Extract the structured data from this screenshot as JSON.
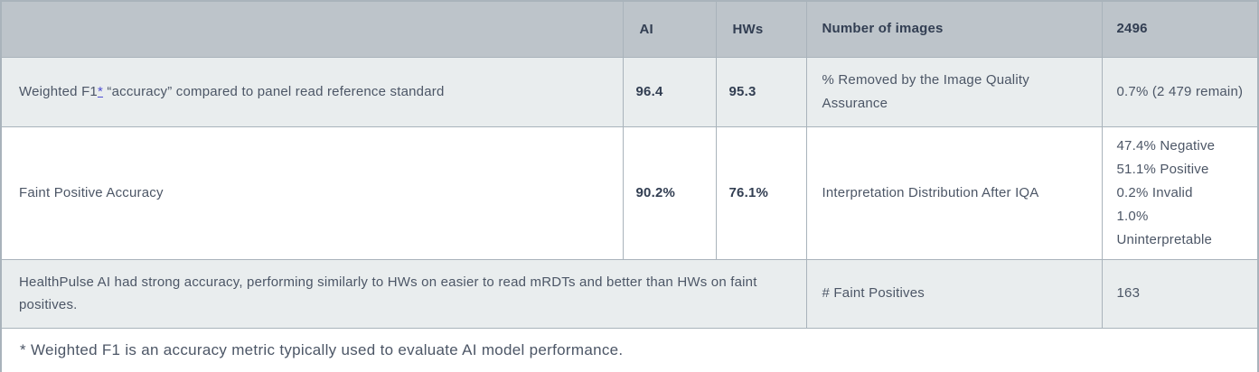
{
  "table": {
    "header": {
      "metric": "",
      "ai": "AI",
      "hws": "HWs",
      "stat_label": "Number of images",
      "stat_value": "2496"
    },
    "row_weighted_f1": {
      "metric_prefix": "Weighted F1",
      "footnote_mark": "*",
      "metric_suffix": "“accuracy” compared to panel read reference standard",
      "ai": "96.4",
      "hws": "95.3",
      "stat_label": "% Removed by the Image Quality Assurance",
      "stat_value": "0.7% (2 479 remain)"
    },
    "row_faint_positive": {
      "metric": "Faint Positive Accuracy",
      "ai": "90.2%",
      "hws": "76.1%",
      "stat_label": "Interpretation Distribution After IQA",
      "stat_value_lines": [
        "47.4% Negative",
        "51.1% Positive",
        "0.2% Invalid",
        "1.0% Uninterpretable"
      ]
    },
    "row_summary": {
      "statement": "HealthPulse AI had strong accuracy, performing similarly to HWs on easier to read mRDTs and better than HWs on faint positives.",
      "stat_label": "# Faint Positives",
      "stat_value": "163"
    },
    "footnote": "* Weighted F1 is an accuracy metric typically used to evaluate AI model performance."
  },
  "colors": {
    "header_bg": "#bdc4ca",
    "alt_row_bg": "#e9edee",
    "border": "#a9b3bb",
    "header_text": "#323e52",
    "body_text": "#4c5666",
    "footnote_link": "#4f4ed2"
  }
}
